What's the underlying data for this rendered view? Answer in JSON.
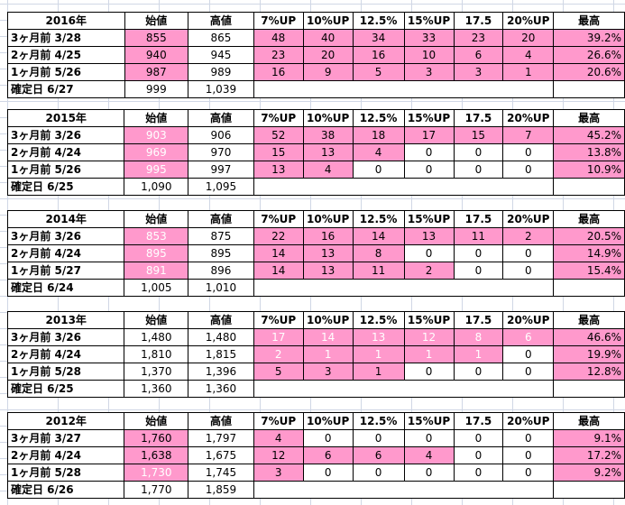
{
  "headers": [
    "始値",
    "高値",
    "7%UP",
    "10%UP",
    "12.5%",
    "15%UP",
    "17.5",
    "20%UP",
    "最高"
  ],
  "blocks": [
    {
      "year": "2016年",
      "rows": [
        {
          "label": "3ヶ月前  3/28",
          "open": "855",
          "high": "865",
          "c7": "48",
          "c10": "40",
          "c125": "34",
          "c15": "33",
          "c175": "23",
          "c20": "20",
          "max": "39.2%"
        },
        {
          "label": "2ヶ月前  4/25",
          "open": "940",
          "high": "945",
          "c7": "23",
          "c10": "20",
          "c125": "16",
          "c15": "10",
          "c175": "6",
          "c20": "4",
          "max": "26.6%"
        },
        {
          "label": "1ヶ月前  5/26",
          "open": "987",
          "high": "989",
          "c7": "16",
          "c10": "9",
          "c125": "5",
          "c15": "3",
          "c175": "3",
          "c20": "1",
          "max": "20.6%"
        }
      ],
      "fixed": {
        "label": "確定日  6/27",
        "open": "999",
        "high": "1,039"
      }
    },
    {
      "year": "2015年",
      "rows": [
        {
          "label": "3ヶ月前  3/26",
          "open": "903",
          "high": "906",
          "c7": "52",
          "c10": "38",
          "c125": "18",
          "c15": "17",
          "c175": "15",
          "c20": "7",
          "max": "45.2%"
        },
        {
          "label": "2ヶ月前  4/24",
          "open": "969",
          "high": "970",
          "c7": "15",
          "c10": "13",
          "c125": "4",
          "c15": "0",
          "c175": "0",
          "c20": "0",
          "max": "13.8%"
        },
        {
          "label": "1ヶ月前  5/26",
          "open": "995",
          "high": "997",
          "c7": "13",
          "c10": "4",
          "c125": "0",
          "c15": "0",
          "c175": "0",
          "c20": "0",
          "max": "10.9%"
        }
      ],
      "fixed": {
        "label": "確定日  6/25",
        "open": "1,090",
        "high": "1,095"
      }
    },
    {
      "year": "2014年",
      "rows": [
        {
          "label": "3ヶ月前  3/26",
          "open": "853",
          "high": "875",
          "c7": "22",
          "c10": "16",
          "c125": "14",
          "c15": "13",
          "c175": "11",
          "c20": "2",
          "max": "20.5%"
        },
        {
          "label": "2ヶ月前  4/24",
          "open": "895",
          "high": "895",
          "c7": "14",
          "c10": "13",
          "c125": "8",
          "c15": "0",
          "c175": "0",
          "c20": "0",
          "max": "14.9%"
        },
        {
          "label": "1ヶ月前  5/27",
          "open": "891",
          "high": "896",
          "c7": "14",
          "c10": "13",
          "c125": "11",
          "c15": "2",
          "c175": "0",
          "c20": "0",
          "max": "15.4%"
        }
      ],
      "fixed": {
        "label": "確定日  6/24",
        "open": "1,005",
        "high": "1,010"
      }
    },
    {
      "year": "2013年",
      "rows": [
        {
          "label": "3ヶ月前  3/26",
          "open": "1,480",
          "high": "1,480",
          "c7": "17",
          "c10": "14",
          "c125": "13",
          "c15": "12",
          "c175": "8",
          "c20": "6",
          "max": "46.6%"
        },
        {
          "label": "2ヶ月前  4/24",
          "open": "1,810",
          "high": "1,815",
          "c7": "2",
          "c10": "1",
          "c125": "1",
          "c15": "1",
          "c175": "1",
          "c20": "0",
          "max": "19.9%"
        },
        {
          "label": "1ヶ月前  5/28",
          "open": "1,370",
          "high": "1,396",
          "c7": "5",
          "c10": "3",
          "c125": "1",
          "c15": "0",
          "c175": "0",
          "c20": "0",
          "max": "12.8%"
        }
      ],
      "fixed": {
        "label": "確定日  6/25",
        "open": "1,360",
        "high": "1,360"
      }
    },
    {
      "year": "2012年",
      "rows": [
        {
          "label": "3ヶ月前  3/27",
          "open": "1,760",
          "high": "1,797",
          "c7": "4",
          "c10": "0",
          "c125": "0",
          "c15": "0",
          "c175": "0",
          "c20": "0",
          "max": "9.1%"
        },
        {
          "label": "2ヶ月前  4/24",
          "open": "1,638",
          "high": "1,675",
          "c7": "12",
          "c10": "6",
          "c125": "6",
          "c15": "4",
          "c175": "0",
          "c20": "0",
          "max": "17.2%"
        },
        {
          "label": "1ヶ月前  5/28",
          "open": "1,730",
          "high": "1,745",
          "c7": "3",
          "c10": "0",
          "c125": "0",
          "c15": "0",
          "c175": "0",
          "c20": "0",
          "max": "9.2%"
        }
      ],
      "fixed": {
        "label": "確定日  6/26",
        "open": "1,770",
        "high": "1,859"
      }
    }
  ],
  "colors": {
    "highlight": "#ff99cc",
    "highlight_text": "#ffffff",
    "grid": "#d0d7e5"
  }
}
